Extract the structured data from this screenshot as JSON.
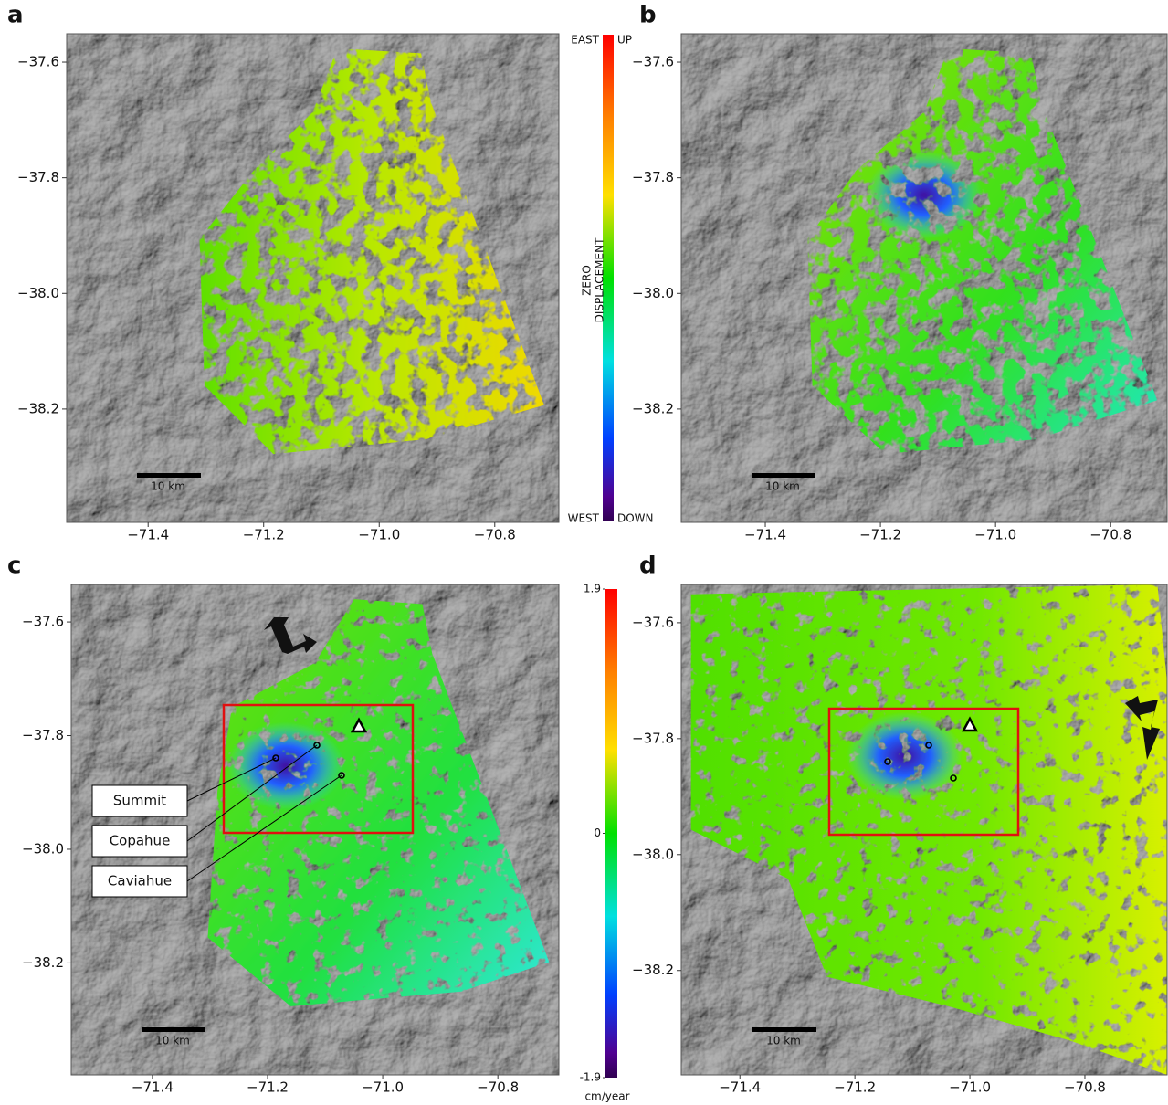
{
  "panels": [
    {
      "label": "a",
      "xlim": [
        -71.541,
        -70.689
      ],
      "ylim": [
        -38.396,
        -37.551
      ],
      "xticks": [
        {
          "value": -71.4,
          "label": "−71.4"
        },
        {
          "value": -71.2,
          "label": "−71.2"
        },
        {
          "value": -71.0,
          "label": "−71.0"
        },
        {
          "value": -70.8,
          "label": "−70.8"
        }
      ],
      "yticks": [
        {
          "value": -37.6,
          "label": "−37.6"
        },
        {
          "value": -37.8,
          "label": "−37.8"
        },
        {
          "value": -38.0,
          "label": "−38.0"
        },
        {
          "value": -38.2,
          "label": "−38.2"
        }
      ],
      "scale_bar": "10 km"
    },
    {
      "label": "b",
      "xlim": [
        -71.546,
        -70.702
      ],
      "ylim": [
        -38.396,
        -37.551
      ],
      "xticks": [
        {
          "value": -71.4,
          "label": "−71.4"
        },
        {
          "value": -71.2,
          "label": "−71.2"
        },
        {
          "value": -71.0,
          "label": "−71.0"
        },
        {
          "value": -70.8,
          "label": "−70.8"
        }
      ],
      "yticks": [
        {
          "value": -37.6,
          "label": "−37.6"
        },
        {
          "value": -37.8,
          "label": "−37.8"
        },
        {
          "value": -38.0,
          "label": "−38.0"
        },
        {
          "value": -38.2,
          "label": "−38.2"
        }
      ],
      "scale_bar": "10 km"
    },
    {
      "label": "c",
      "xlim": [
        -71.541,
        -70.694
      ],
      "ylim": [
        -38.397,
        -37.534
      ],
      "xticks": [
        {
          "value": -71.4,
          "label": "−71.4"
        },
        {
          "value": -71.2,
          "label": "−71.2"
        },
        {
          "value": -71.0,
          "label": "−71.0"
        },
        {
          "value": -70.8,
          "label": "−70.8"
        }
      ],
      "yticks": [
        {
          "value": -37.6,
          "label": "−37.6"
        },
        {
          "value": -37.8,
          "label": "−37.8"
        },
        {
          "value": -38.0,
          "label": "−38.0"
        },
        {
          "value": -38.2,
          "label": "−38.2"
        }
      ],
      "scale_bar": "10 km"
    },
    {
      "label": "d",
      "xlim": [
        -71.502,
        -70.657
      ],
      "ylim": [
        -38.38,
        -37.534
      ],
      "xticks": [
        {
          "value": -71.4,
          "label": "−71.4"
        },
        {
          "value": -71.2,
          "label": "−71.2"
        },
        {
          "value": -71.0,
          "label": "−71.0"
        },
        {
          "value": -70.8,
          "label": "−70.8"
        }
      ],
      "yticks": [
        {
          "value": -37.6,
          "label": "−37.6"
        },
        {
          "value": -37.8,
          "label": "−37.8"
        },
        {
          "value": -38.0,
          "label": "−38.0"
        },
        {
          "value": -38.2,
          "label": "−38.2"
        }
      ],
      "scale_bar": "10 km"
    }
  ],
  "colorbar_direction": {
    "top_left": "EAST",
    "top_right": "UP",
    "bottom_left": "WEST",
    "bottom_right": "DOWN",
    "middle": [
      "ZERO",
      "DISPLACEMENT"
    ]
  },
  "colorbar_velocity": {
    "lim": [
      -1.9,
      1.9
    ],
    "ticks": [
      1.9,
      0,
      -1.9
    ],
    "unit": "cm/year"
  },
  "annotations": [
    "Summit",
    "Copahue",
    "Caviahue"
  ]
}
